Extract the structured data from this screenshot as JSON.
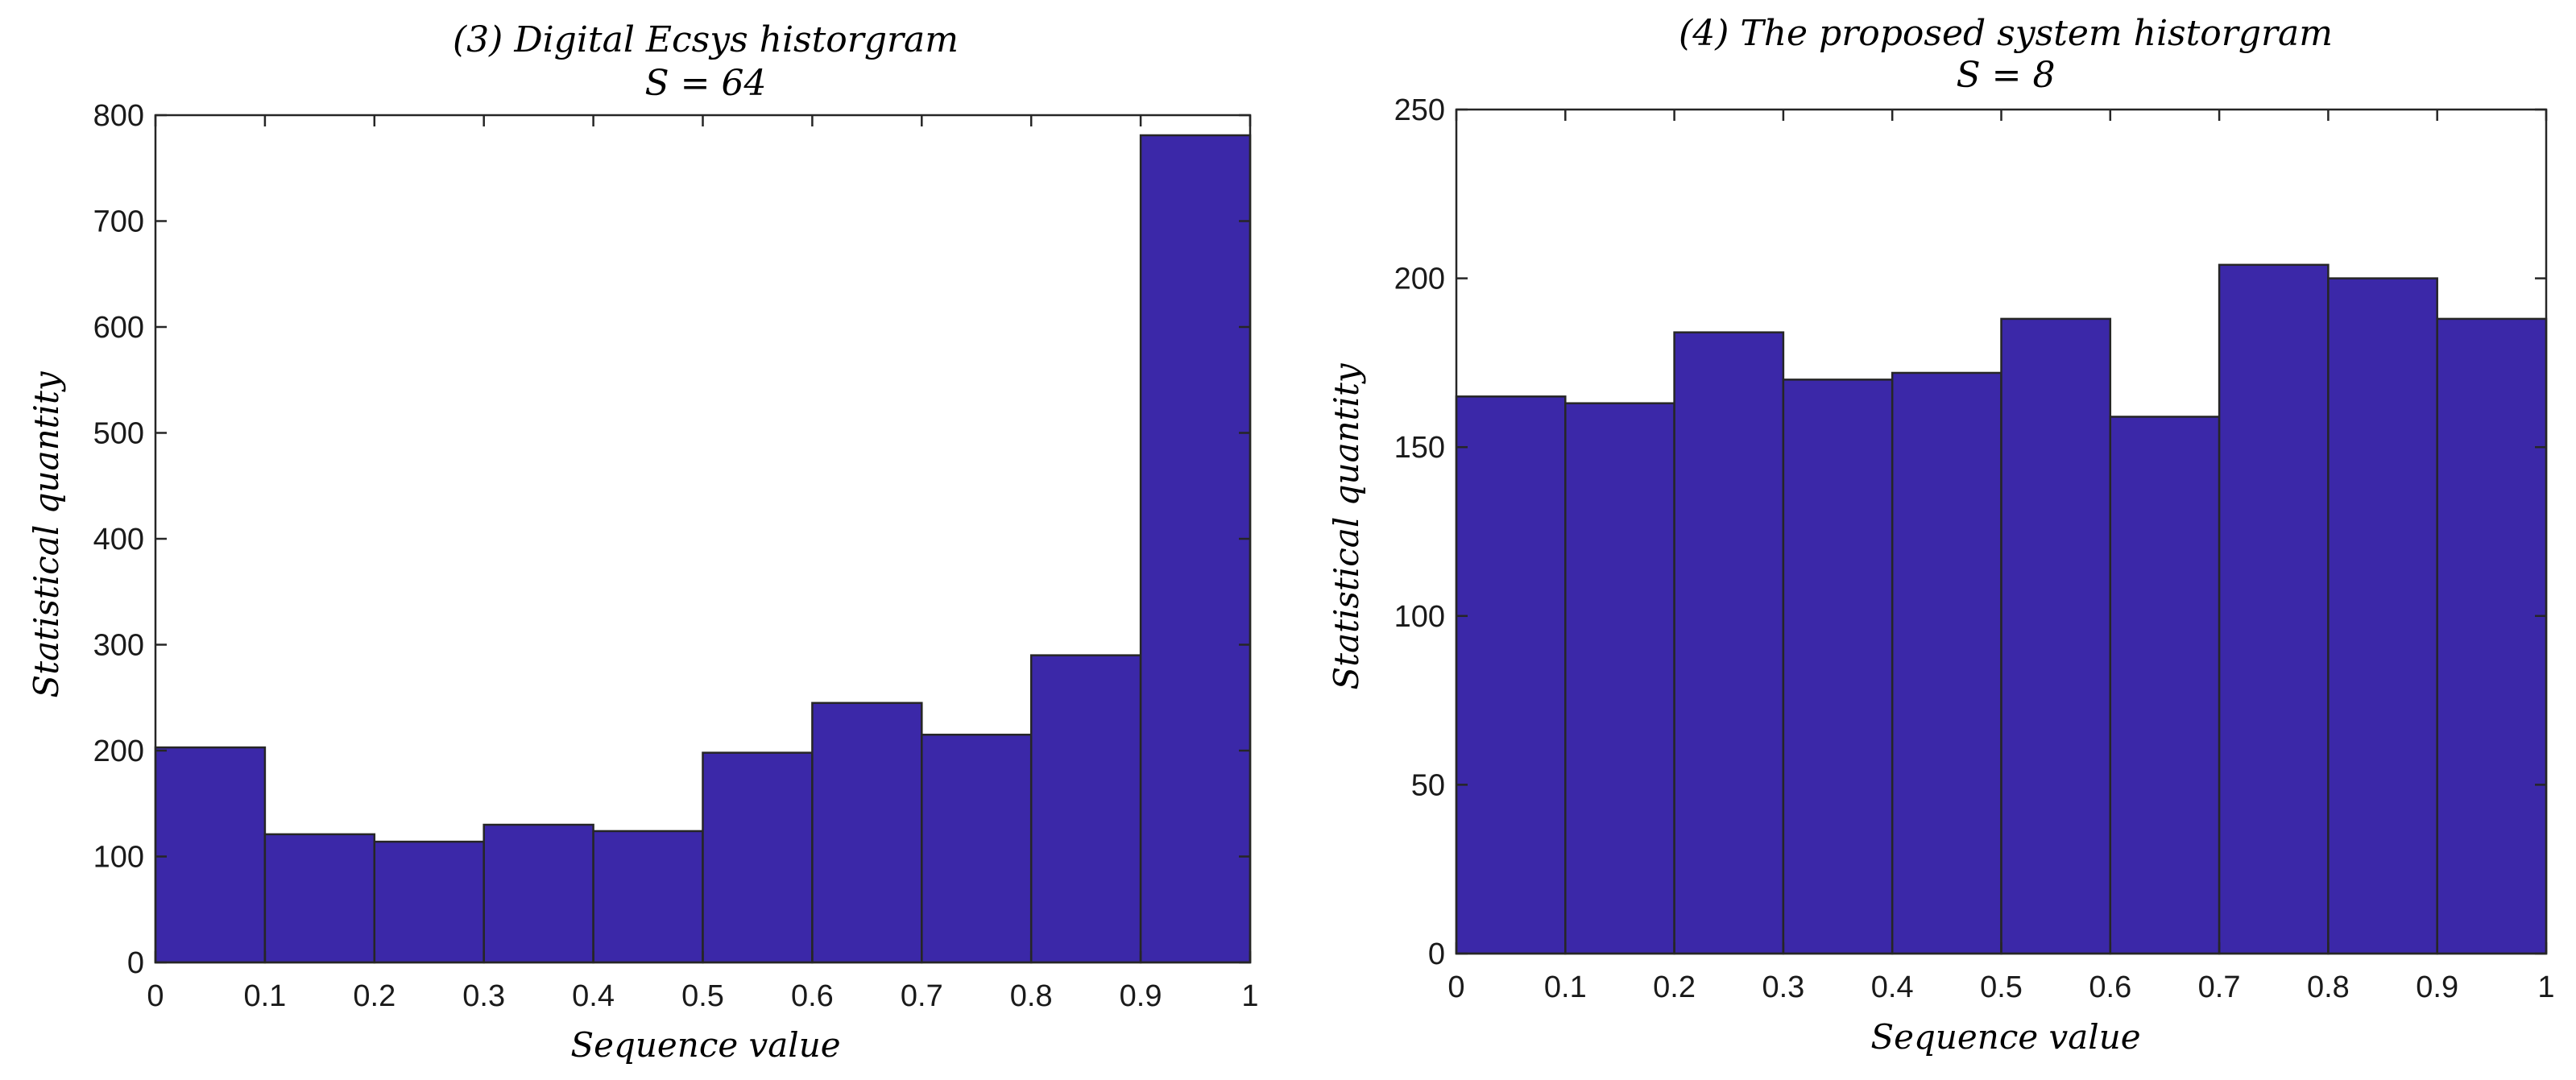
{
  "chart_data": [
    {
      "type": "bar",
      "title": "(3)   Digital   Ecsys   historgram",
      "subtitle": "S = 64",
      "xlabel": "Sequence   value",
      "ylabel": "Statistical   quantity",
      "bin_edges": [
        0,
        0.1,
        0.2,
        0.3,
        0.4,
        0.5,
        0.6,
        0.7,
        0.8,
        0.9,
        1
      ],
      "values": [
        203,
        121,
        114,
        130,
        124,
        198,
        245,
        215,
        290,
        781
      ],
      "xlim": [
        0,
        1
      ],
      "ylim": [
        0,
        800
      ],
      "xticks": [
        "0",
        "0.1",
        "0.2",
        "0.3",
        "0.4",
        "0.5",
        "0.6",
        "0.7",
        "0.8",
        "0.9",
        "1"
      ],
      "yticks": [
        "0",
        "100",
        "200",
        "300",
        "400",
        "500",
        "600",
        "700",
        "800"
      ],
      "bar_color": "#3b28a8",
      "grid": false
    },
    {
      "type": "bar",
      "title": "(4)   The   proposed   system   historgram",
      "subtitle": "S = 8",
      "xlabel": "Sequence   value",
      "ylabel": "Statistical   quantity",
      "bin_edges": [
        0,
        0.1,
        0.2,
        0.3,
        0.4,
        0.5,
        0.6,
        0.7,
        0.8,
        0.9,
        1
      ],
      "values": [
        165,
        163,
        184,
        170,
        172,
        188,
        159,
        204,
        200,
        188
      ],
      "xlim": [
        0,
        1
      ],
      "ylim": [
        0,
        250
      ],
      "xticks": [
        "0",
        "0.1",
        "0.2",
        "0.3",
        "0.4",
        "0.5",
        "0.6",
        "0.7",
        "0.8",
        "0.9",
        "1"
      ],
      "yticks": [
        "0",
        "50",
        "100",
        "150",
        "200",
        "250"
      ],
      "bar_color": "#3b28a8",
      "grid": false
    }
  ]
}
